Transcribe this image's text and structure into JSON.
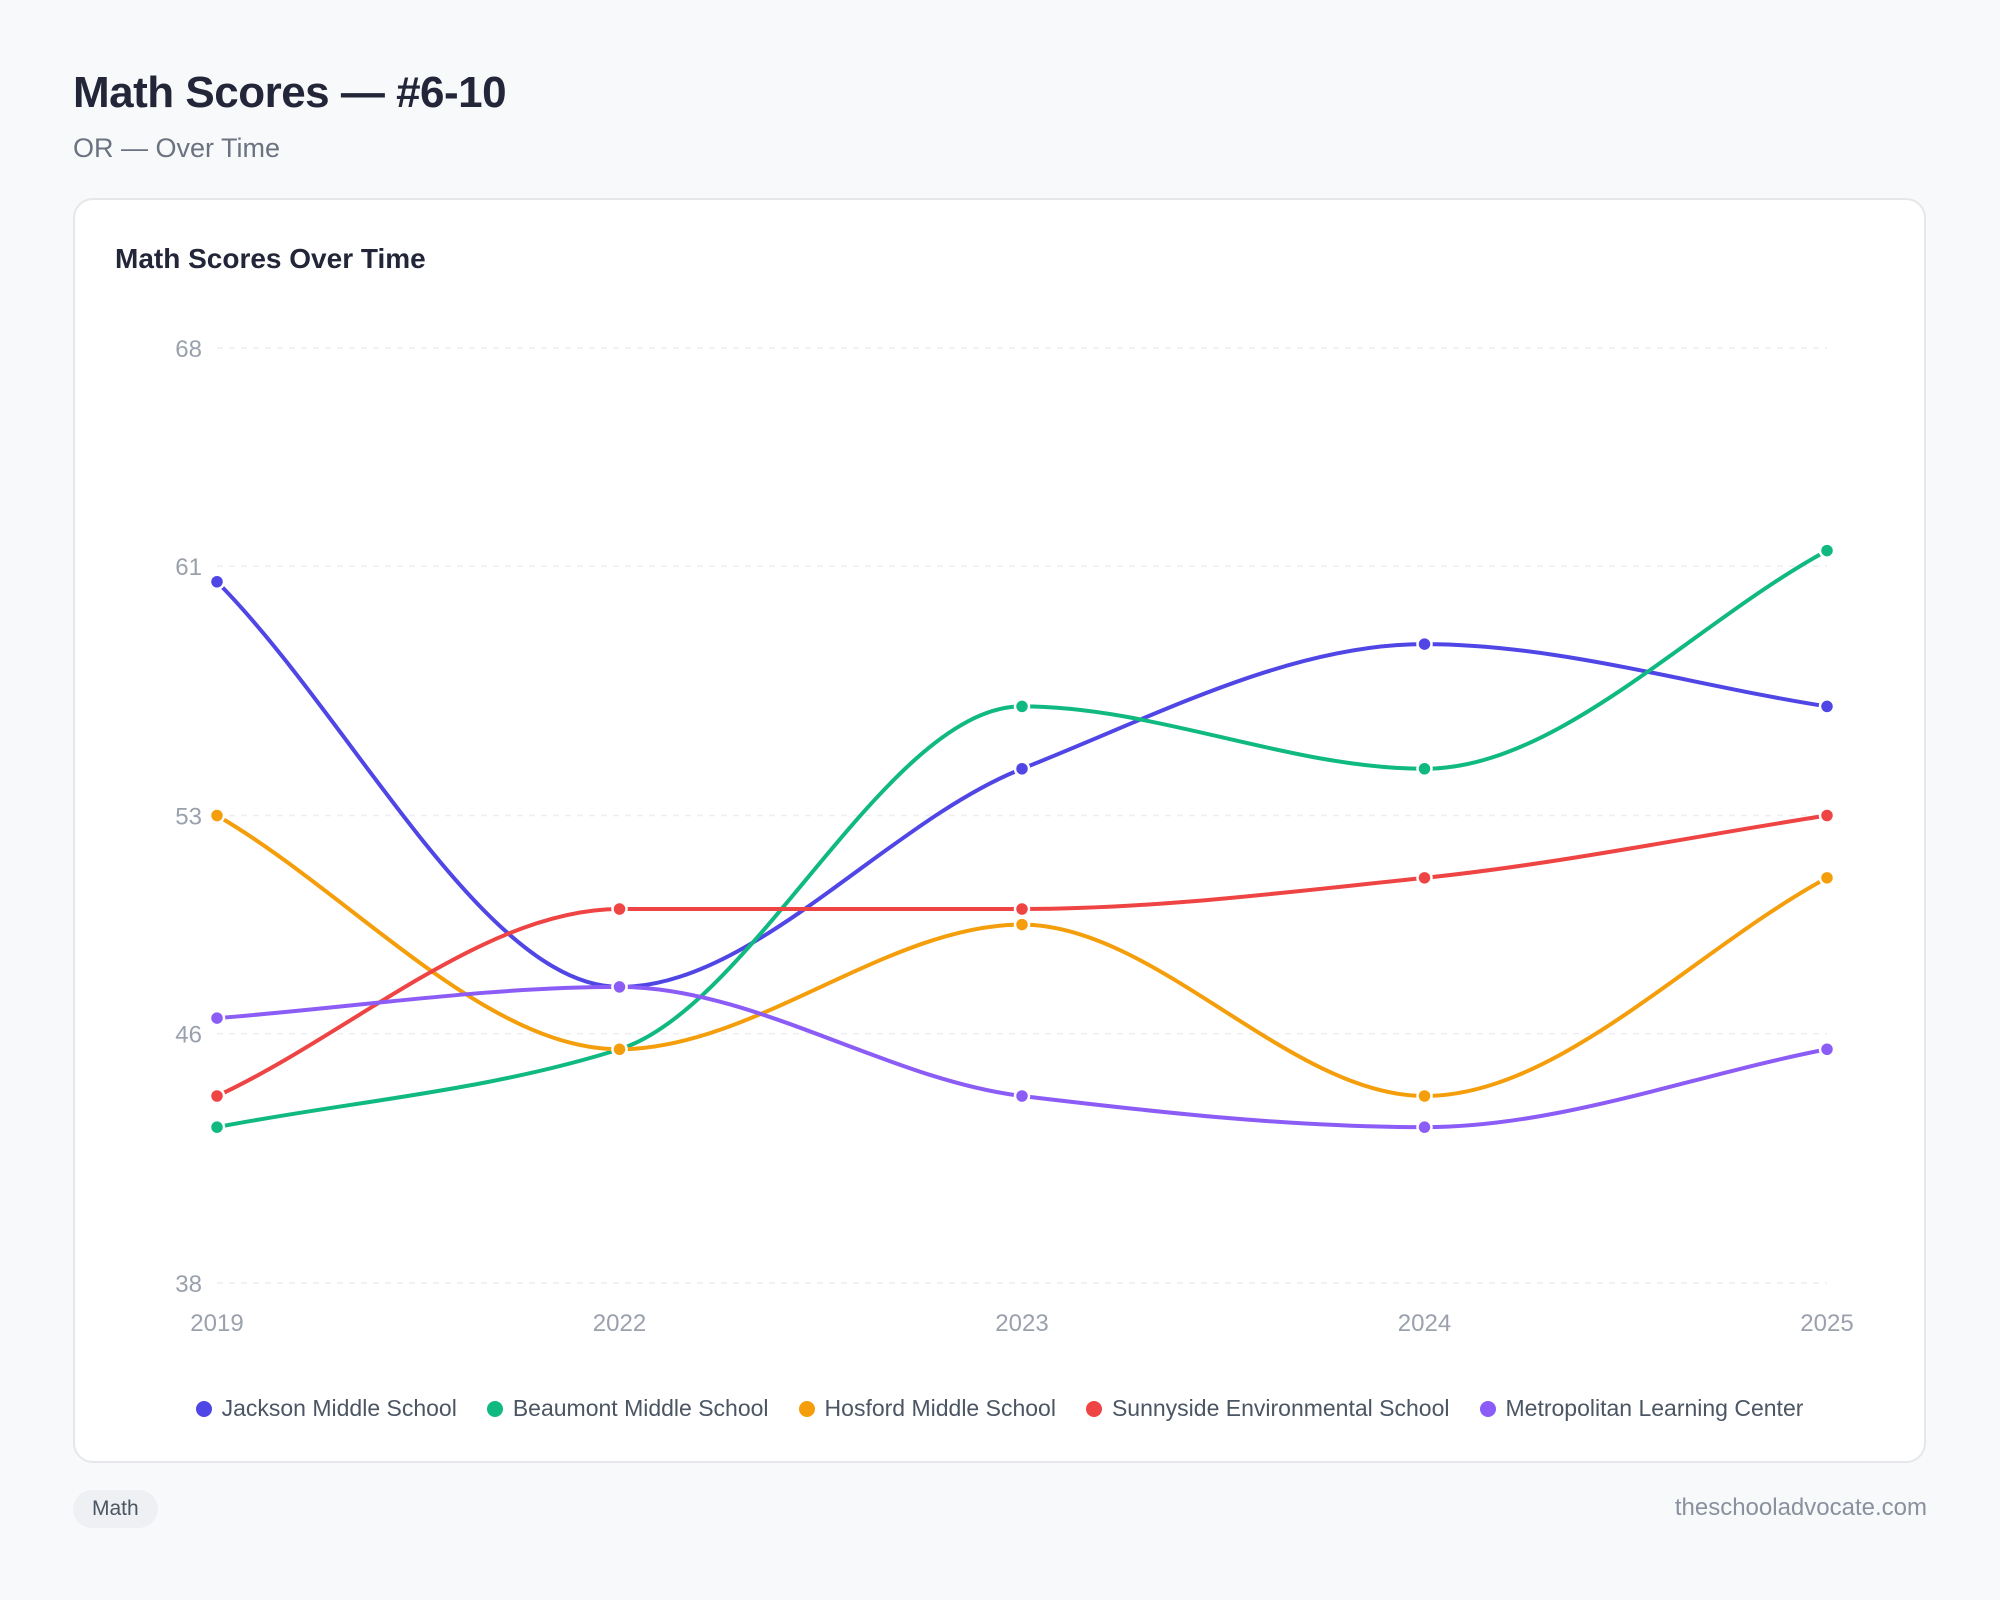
{
  "header": {
    "title": "Math Scores — #6-10",
    "subtitle": "OR — Over Time"
  },
  "chart_data": {
    "type": "line",
    "title": "Math Scores Over Time",
    "x": [
      "2019",
      "2022",
      "2023",
      "2024",
      "2025"
    ],
    "ylim": [
      38,
      68
    ],
    "yticks": [
      38,
      46,
      53,
      61,
      68
    ],
    "grid": true,
    "legend_position": "bottom",
    "series": [
      {
        "name": "Jackson Middle School",
        "color": "#4f46e5",
        "values": [
          60.5,
          47.5,
          54.5,
          58.5,
          56.5
        ]
      },
      {
        "name": "Beaumont Middle School",
        "color": "#10b981",
        "values": [
          43.0,
          45.5,
          56.5,
          54.5,
          61.5
        ]
      },
      {
        "name": "Hosford Middle School",
        "color": "#f59e0b",
        "values": [
          53.0,
          45.5,
          49.5,
          44.0,
          51.0
        ]
      },
      {
        "name": "Sunnyside Environmental School",
        "color": "#ef4444",
        "values": [
          44.0,
          50.0,
          50.0,
          51.0,
          53.0
        ]
      },
      {
        "name": "Metropolitan Learning Center",
        "color": "#8b5cf6",
        "values": [
          46.5,
          47.5,
          44.0,
          43.0,
          45.5
        ]
      }
    ]
  },
  "footer": {
    "tag": "Math",
    "site": "theschooladvocate.com"
  }
}
